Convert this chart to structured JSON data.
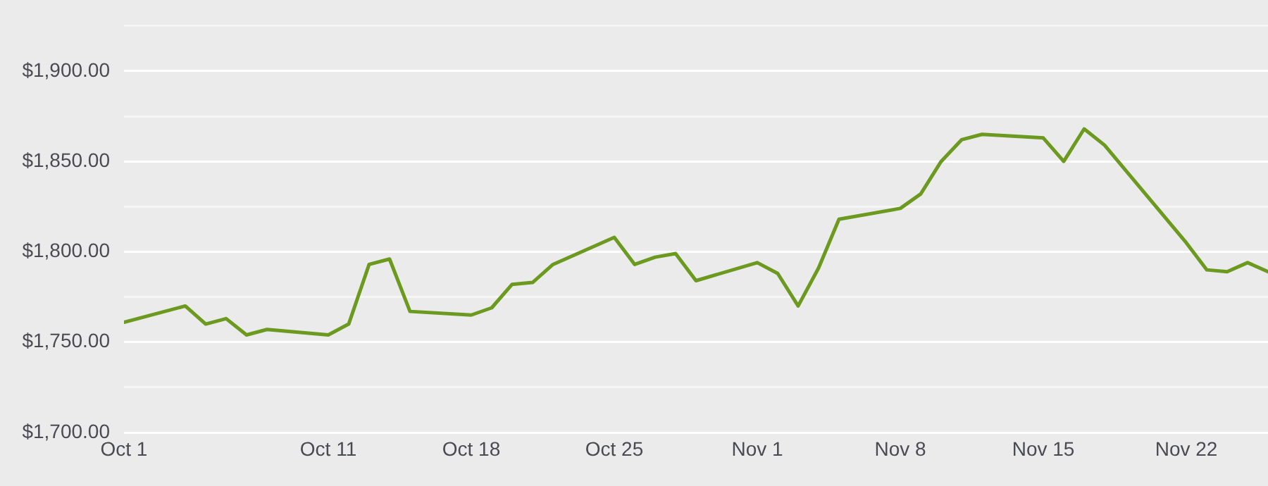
{
  "chart_data": {
    "type": "line",
    "x": [
      "--10-01",
      "--10-04",
      "--10-05",
      "--10-06",
      "--10-07",
      "--10-08",
      "--10-11",
      "--10-12",
      "--10-13",
      "--10-14",
      "--10-15",
      "--10-18",
      "--10-19",
      "--10-20",
      "--10-21",
      "--10-22",
      "--10-25",
      "--10-26",
      "--10-27",
      "--10-28",
      "--10-29",
      "--11-01",
      "--11-02",
      "--11-03",
      "--11-04",
      "--11-05",
      "--11-08",
      "--11-09",
      "--11-10",
      "--11-11",
      "--11-12",
      "--11-15",
      "--11-16",
      "--11-17",
      "--11-18",
      "--11-22",
      "--11-23",
      "--11-24",
      "--11-25",
      "--11-26"
    ],
    "series": [
      {
        "color": "#6b9a1f",
        "values": [
          1761,
          1770,
          1760,
          1763,
          1754,
          1757,
          1754,
          1760,
          1793,
          1796,
          1767,
          1765,
          1769,
          1782,
          1783,
          1793,
          1808,
          1793,
          1797,
          1799,
          1784,
          1794,
          1788,
          1770,
          1791,
          1818,
          1824,
          1832,
          1850,
          1862,
          1865,
          1863,
          1850,
          1868,
          1859,
          1805,
          1790,
          1789,
          1794,
          1789
        ]
      }
    ],
    "xlim": [
      "--10-01",
      "--11-26"
    ],
    "xticks": [
      {
        "value": "--10-01",
        "label": "Oct 1"
      },
      {
        "value": "--10-11",
        "label": "Oct 11"
      },
      {
        "value": "--10-18",
        "label": "Oct 18"
      },
      {
        "value": "--10-25",
        "label": "Oct 25"
      },
      {
        "value": "--11-01",
        "label": "Nov 1"
      },
      {
        "value": "--11-08",
        "label": "Nov 8"
      },
      {
        "value": "--11-15",
        "label": "Nov 15"
      },
      {
        "value": "--11-22",
        "label": "Nov 22"
      }
    ],
    "ylim": [
      1700,
      1925
    ],
    "yticks": [
      {
        "value": 1700,
        "label": "$1,700.00"
      },
      {
        "value": 1725,
        "label": null
      },
      {
        "value": 1750,
        "label": "$1,750.00"
      },
      {
        "value": 1775,
        "label": null
      },
      {
        "value": 1800,
        "label": "$1,800.00"
      },
      {
        "value": 1825,
        "label": null
      },
      {
        "value": 1850,
        "label": "$1,850.00"
      },
      {
        "value": 1875,
        "label": null
      },
      {
        "value": 1900,
        "label": "$1,900.00"
      },
      {
        "value": 1925,
        "label": null
      }
    ],
    "grid": "y",
    "legend": false,
    "marker": "none",
    "line_style": "solid"
  }
}
